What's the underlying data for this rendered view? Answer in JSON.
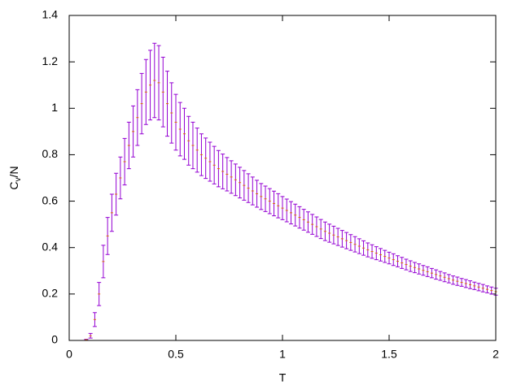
{
  "chart_data": {
    "type": "errorbar",
    "xlabel": "T",
    "ylabel": [
      "C",
      "v",
      "/N"
    ],
    "xlim": [
      0,
      2
    ],
    "ylim": [
      0,
      1.4
    ],
    "xticks": [
      0,
      0.5,
      1,
      1.5,
      2
    ],
    "yticks": [
      0,
      0.2,
      0.4,
      0.6,
      0.8,
      1,
      1.2,
      1.4
    ],
    "color": "#9400d3",
    "x": [
      0.02,
      0.04,
      0.06,
      0.08,
      0.1,
      0.12,
      0.14,
      0.16,
      0.18,
      0.2,
      0.22,
      0.24,
      0.26,
      0.28,
      0.3,
      0.32,
      0.34,
      0.36,
      0.38,
      0.4,
      0.42,
      0.44,
      0.46,
      0.48,
      0.5,
      0.52,
      0.54,
      0.56,
      0.58,
      0.6,
      0.62,
      0.64,
      0.66,
      0.68,
      0.7,
      0.72,
      0.74,
      0.76,
      0.78,
      0.8,
      0.82,
      0.84,
      0.86,
      0.88,
      0.9,
      0.92,
      0.94,
      0.96,
      0.98,
      1.0,
      1.02,
      1.04,
      1.06,
      1.08,
      1.1,
      1.12,
      1.14,
      1.16,
      1.18,
      1.2,
      1.22,
      1.24,
      1.26,
      1.28,
      1.3,
      1.32,
      1.34,
      1.36,
      1.38,
      1.4,
      1.42,
      1.44,
      1.46,
      1.48,
      1.5,
      1.52,
      1.54,
      1.56,
      1.58,
      1.6,
      1.62,
      1.64,
      1.66,
      1.68,
      1.7,
      1.72,
      1.74,
      1.76,
      1.78,
      1.8,
      1.82,
      1.84,
      1.86,
      1.88,
      1.9,
      1.92,
      1.94,
      1.96,
      1.98,
      2.0
    ],
    "values": [
      0,
      0,
      0,
      0.003,
      0.02,
      0.09,
      0.2,
      0.34,
      0.45,
      0.55,
      0.63,
      0.7,
      0.77,
      0.84,
      0.9,
      0.96,
      1.02,
      1.07,
      1.1,
      1.12,
      1.11,
      1.07,
      1.02,
      0.98,
      0.94,
      0.91,
      0.89,
      0.86,
      0.84,
      0.82,
      0.8,
      0.785,
      0.77,
      0.755,
      0.74,
      0.728,
      0.716,
      0.704,
      0.692,
      0.68,
      0.668,
      0.656,
      0.644,
      0.632,
      0.62,
      0.61,
      0.6,
      0.59,
      0.58,
      0.57,
      0.56,
      0.55,
      0.54,
      0.53,
      0.52,
      0.51,
      0.5,
      0.49,
      0.48,
      0.47,
      0.462,
      0.454,
      0.446,
      0.438,
      0.43,
      0.422,
      0.414,
      0.406,
      0.398,
      0.39,
      0.383,
      0.376,
      0.369,
      0.362,
      0.355,
      0.348,
      0.341,
      0.334,
      0.327,
      0.32,
      0.314,
      0.308,
      0.302,
      0.296,
      0.29,
      0.284,
      0.278,
      0.272,
      0.266,
      0.26,
      0.255,
      0.25,
      0.245,
      0.24,
      0.235,
      0.23,
      0.225,
      0.22,
      0.215,
      0.21
    ],
    "errors": [
      0,
      0,
      0,
      0.002,
      0.01,
      0.03,
      0.05,
      0.07,
      0.08,
      0.08,
      0.09,
      0.09,
      0.1,
      0.1,
      0.11,
      0.12,
      0.13,
      0.14,
      0.15,
      0.16,
      0.16,
      0.15,
      0.14,
      0.13,
      0.12,
      0.115,
      0.11,
      0.105,
      0.1,
      0.095,
      0.09,
      0.087,
      0.084,
      0.081,
      0.078,
      0.075,
      0.072,
      0.07,
      0.068,
      0.066,
      0.064,
      0.062,
      0.06,
      0.058,
      0.056,
      0.055,
      0.054,
      0.053,
      0.052,
      0.05,
      0.049,
      0.048,
      0.047,
      0.046,
      0.045,
      0.044,
      0.043,
      0.042,
      0.041,
      0.04,
      0.039,
      0.038,
      0.037,
      0.036,
      0.035,
      0.034,
      0.033,
      0.032,
      0.031,
      0.03,
      0.029,
      0.028,
      0.027,
      0.026,
      0.025,
      0.025,
      0.024,
      0.024,
      0.023,
      0.023,
      0.022,
      0.022,
      0.021,
      0.021,
      0.02,
      0.02,
      0.019,
      0.019,
      0.018,
      0.018,
      0.018,
      0.017,
      0.017,
      0.017,
      0.016,
      0.016,
      0.016,
      0.015,
      0.015,
      0.015
    ]
  }
}
